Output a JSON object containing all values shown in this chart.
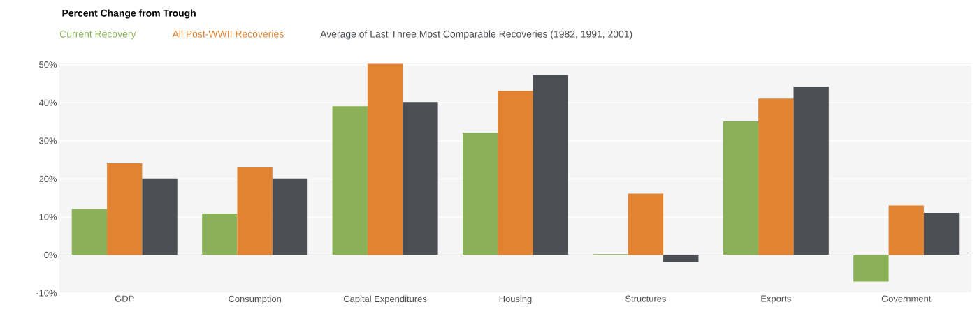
{
  "chart_data": {
    "type": "bar",
    "title": "Percent Change from Trough",
    "categories": [
      "GDP",
      "Consumption",
      "Capital Expenditures",
      "Housing",
      "Structures",
      "Exports",
      "Government"
    ],
    "series": [
      {
        "name": "Current Recovery",
        "color": "#8bb158",
        "values": [
          12.1,
          10.9,
          39.1,
          32.1,
          0.2,
          35.1,
          -7.0
        ]
      },
      {
        "name": "All Post-WWII Recoveries",
        "color": "#e18331",
        "values": [
          24.1,
          23.0,
          50.2,
          43.1,
          16.1,
          41.1,
          13.0
        ]
      },
      {
        "name": "Average of Last Three Most Comparable Recoveries (1982, 1991, 2001)",
        "color": "#4b4e52",
        "values": [
          20.1,
          20.1,
          40.2,
          47.3,
          -1.9,
          44.2,
          11.1
        ]
      }
    ],
    "ylim": [
      -10,
      50.5
    ],
    "yticks": [
      {
        "value": -10,
        "label": "-10%"
      },
      {
        "value": 0,
        "label": "0%"
      },
      {
        "value": 10,
        "label": "10%"
      },
      {
        "value": 20,
        "label": "20%"
      },
      {
        "value": 30,
        "label": "30%"
      },
      {
        "value": 40,
        "label": "40%"
      },
      {
        "value": 50,
        "label": "50%"
      }
    ],
    "grid": "y",
    "legend": "top"
  }
}
